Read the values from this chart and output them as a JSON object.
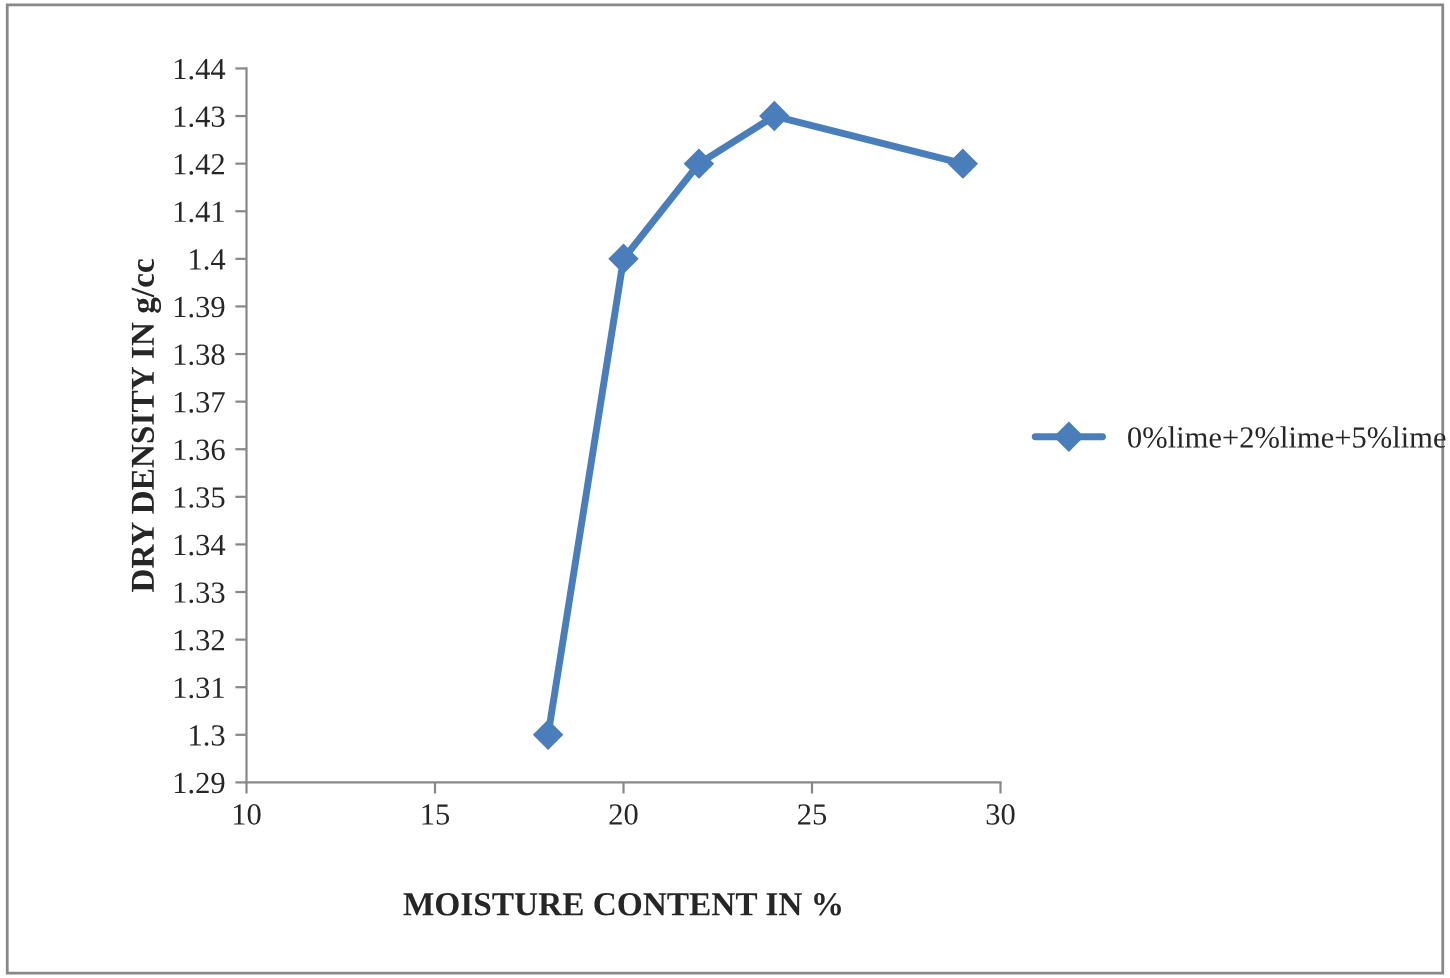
{
  "chart_data": {
    "type": "line",
    "xlabel": "MOISTURE CONTENT IN %",
    "ylabel": "DRY DENSITY IN g/cc",
    "x": [
      18,
      20,
      22,
      24,
      29
    ],
    "series": [
      {
        "name": "0%lime+2%lime+5%lime",
        "color": "#4a7ebb",
        "values": [
          1.3,
          1.4,
          1.42,
          1.43,
          1.42
        ]
      }
    ],
    "xlim": [
      10,
      30
    ],
    "xticks": [
      10,
      15,
      20,
      25,
      30
    ],
    "ylim": [
      1.29,
      1.44
    ],
    "yticks": [
      1.29,
      1.3,
      1.31,
      1.32,
      1.33,
      1.34,
      1.35,
      1.36,
      1.37,
      1.38,
      1.39,
      1.4,
      1.41,
      1.42,
      1.43,
      1.44
    ],
    "grid": false,
    "legend": "right",
    "marker": "diamond",
    "line_style": "solid"
  }
}
